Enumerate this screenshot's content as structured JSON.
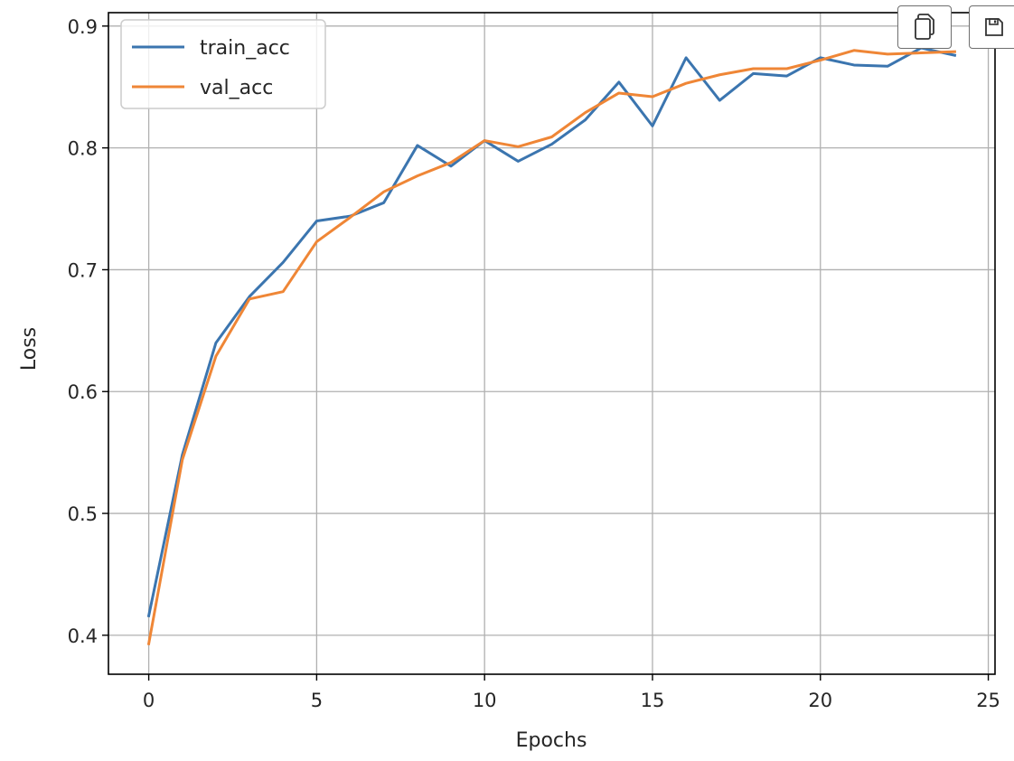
{
  "colors": {
    "train": "#3b75af",
    "val": "#ef8636",
    "grid": "#b0b0b0",
    "axis": "#000000"
  },
  "toolbar": {
    "copy_icon": "copy-icon",
    "save_icon": "save-icon"
  },
  "chart_data": {
    "type": "line",
    "title": "",
    "xlabel": "Epochs",
    "ylabel": "Loss",
    "xlim": [
      -1.2,
      25.2
    ],
    "ylim": [
      0.368,
      0.911
    ],
    "xticks": [
      0,
      5,
      10,
      15,
      20,
      25
    ],
    "yticks": [
      0.4,
      0.5,
      0.6,
      0.7,
      0.8,
      0.9
    ],
    "xtick_labels": [
      "0",
      "5",
      "10",
      "15",
      "20",
      "25"
    ],
    "ytick_labels": [
      "0.4",
      "0.5",
      "0.6",
      "0.7",
      "0.8",
      "0.9"
    ],
    "grid": true,
    "legend_position": "upper-left",
    "x": [
      0,
      1,
      2,
      3,
      4,
      5,
      6,
      7,
      8,
      9,
      10,
      11,
      12,
      13,
      14,
      15,
      16,
      17,
      18,
      19,
      20,
      21,
      22,
      23,
      24
    ],
    "series": [
      {
        "name": "train_acc",
        "color": "#3b75af",
        "values": [
          0.416,
          0.548,
          0.64,
          0.678,
          0.706,
          0.74,
          0.744,
          0.755,
          0.802,
          0.785,
          0.806,
          0.789,
          0.803,
          0.823,
          0.854,
          0.818,
          0.874,
          0.839,
          0.861,
          0.859,
          0.874,
          0.868,
          0.867,
          0.882,
          0.876
        ]
      },
      {
        "name": "val_acc",
        "color": "#ef8636",
        "values": [
          0.393,
          0.544,
          0.629,
          0.676,
          0.682,
          0.723,
          0.743,
          0.764,
          0.777,
          0.788,
          0.806,
          0.801,
          0.809,
          0.829,
          0.845,
          0.842,
          0.853,
          0.86,
          0.865,
          0.865,
          0.872,
          0.88,
          0.877,
          0.878,
          0.879
        ]
      }
    ]
  }
}
